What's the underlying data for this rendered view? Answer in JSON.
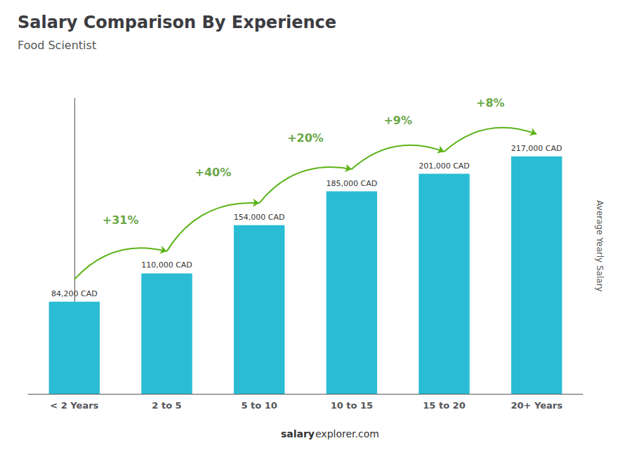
{
  "chart_data": {
    "type": "bar",
    "title": "Salary Comparison By Experience",
    "subtitle": "Food Scientist",
    "categories": [
      "< 2 Years",
      "2 to 5",
      "5 to 10",
      "10 to 15",
      "15 to 20",
      "20+ Years"
    ],
    "values": [
      84200,
      110000,
      154000,
      185000,
      201000,
      217000
    ],
    "value_labels": [
      "84,200 CAD",
      "110,000 CAD",
      "154,000 CAD",
      "185,000 CAD",
      "201,000 CAD",
      "217,000 CAD"
    ],
    "data_labels": true,
    "color": "#29bcd4",
    "ylabel": "Average Yearly Salary",
    "ylim": [
      0,
      270000
    ],
    "grid": false,
    "tick_labels": "x",
    "annotations": [
      "+31%",
      "+40%",
      "+20%",
      "+9%",
      "+8%"
    ],
    "watermark": [
      "salary",
      "explorer.com"
    ]
  }
}
